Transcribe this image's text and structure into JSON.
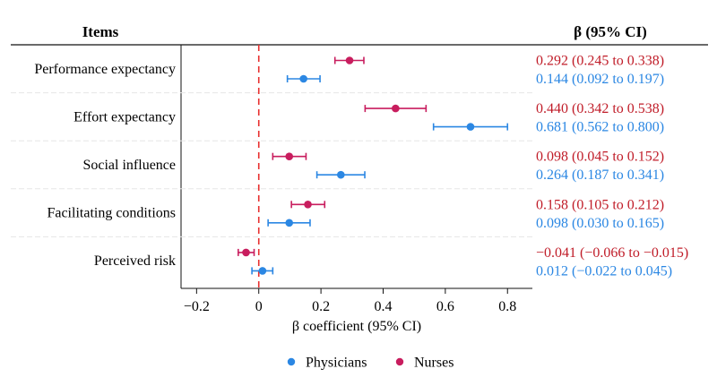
{
  "chart_data": {
    "type": "forest",
    "header_left": "Items",
    "header_right": "β (95% CI)",
    "xlabel": "β coefficient (95% CI)",
    "xlim": [
      -0.25,
      0.88
    ],
    "xticks": [
      -0.2,
      0,
      0.2,
      0.4,
      0.6,
      0.8
    ],
    "xtick_labels": [
      "−0.2",
      "0",
      "0.2",
      "0.4",
      "0.6",
      "0.8"
    ],
    "reference_line": 0,
    "colors": {
      "Nurses": "#c81d5e",
      "Physicians": "#2b87e3",
      "nurse_text": "#c01c28",
      "physician_text": "#2b87e3"
    },
    "legend": [
      {
        "name": "Physicians",
        "color": "#2b87e3"
      },
      {
        "name": "Nurses",
        "color": "#c81d5e"
      }
    ],
    "categories": [
      "Performance expectancy",
      "Effort expectancy",
      "Social influence",
      "Facilitating conditions",
      "Perceived risk"
    ],
    "series": [
      {
        "name": "Nurses",
        "points": [
          {
            "est": 0.292,
            "lo": 0.245,
            "hi": 0.338,
            "label": "0.292 (0.245 to 0.338)"
          },
          {
            "est": 0.44,
            "lo": 0.342,
            "hi": 0.538,
            "label": "0.440 (0.342 to 0.538)"
          },
          {
            "est": 0.098,
            "lo": 0.045,
            "hi": 0.152,
            "label": "0.098 (0.045 to 0.152)"
          },
          {
            "est": 0.158,
            "lo": 0.105,
            "hi": 0.212,
            "label": "0.158 (0.105 to 0.212)"
          },
          {
            "est": -0.041,
            "lo": -0.066,
            "hi": -0.015,
            "label": "−0.041 (−0.066 to −0.015)"
          }
        ]
      },
      {
        "name": "Physicians",
        "points": [
          {
            "est": 0.144,
            "lo": 0.092,
            "hi": 0.197,
            "label": "0.144 (0.092 to 0.197)"
          },
          {
            "est": 0.681,
            "lo": 0.562,
            "hi": 0.8,
            "label": "0.681 (0.562 to 0.800)"
          },
          {
            "est": 0.264,
            "lo": 0.187,
            "hi": 0.341,
            "label": "0.264 (0.187 to 0.341)"
          },
          {
            "est": 0.098,
            "lo": 0.03,
            "hi": 0.165,
            "label": "0.098 (0.030 to 0.165)"
          },
          {
            "est": 0.012,
            "lo": -0.022,
            "hi": 0.045,
            "label": "0.012 (−0.022 to 0.045)"
          }
        ]
      }
    ]
  }
}
